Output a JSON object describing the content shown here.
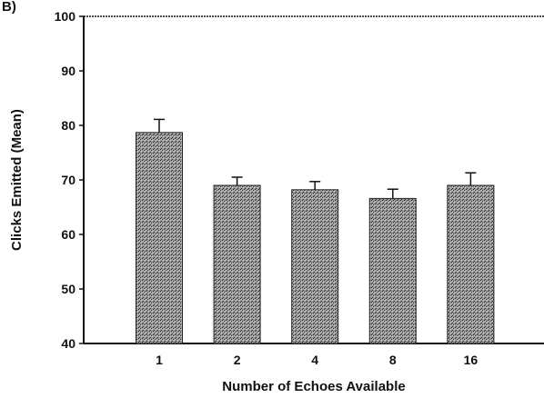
{
  "panel_label": "B)",
  "chart_data": {
    "type": "bar",
    "categories": [
      "1",
      "2",
      "4",
      "8",
      "16"
    ],
    "values": [
      78.7,
      69.0,
      68.2,
      66.6,
      69.0
    ],
    "errors": [
      2.4,
      1.5,
      1.5,
      1.7,
      2.3
    ],
    "xlabel": "Number of Echoes Available",
    "ylabel": "Clicks Emitted (Mean)",
    "ylim": [
      40,
      100
    ],
    "yticks": [
      40,
      50,
      60,
      70,
      80,
      90,
      100
    ],
    "grid": false,
    "bar_color": "#8a8a8a"
  }
}
